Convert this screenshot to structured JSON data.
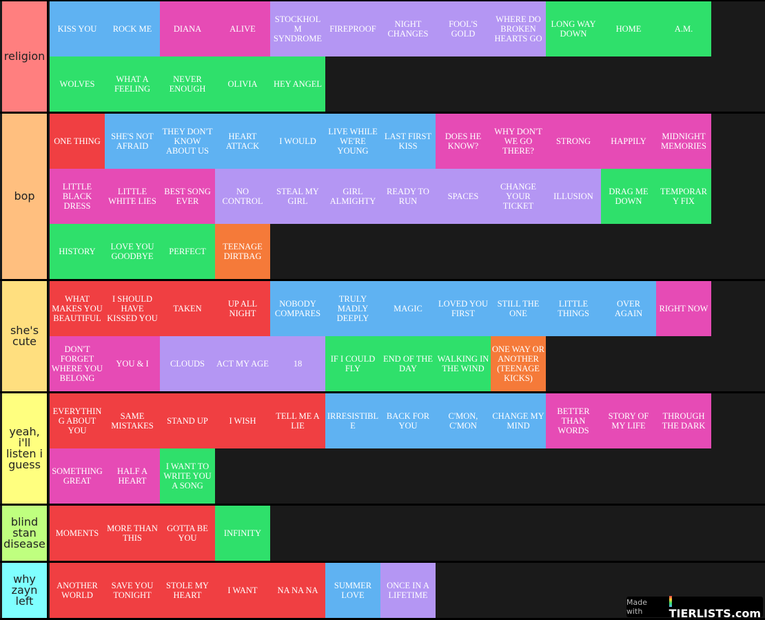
{
  "tiers": [
    {
      "label": "religion",
      "color": "#ff7f7f",
      "items": [
        {
          "text": "KISS YOU",
          "c": "blue"
        },
        {
          "text": "ROCK ME",
          "c": "blue"
        },
        {
          "text": "DIANA",
          "c": "pink"
        },
        {
          "text": "ALIVE",
          "c": "pink"
        },
        {
          "text": "STOCKHOLM SYNDROME",
          "c": "purple"
        },
        {
          "text": "FIREPROOF",
          "c": "purple"
        },
        {
          "text": "NIGHT CHANGES",
          "c": "purple"
        },
        {
          "text": "FOOL'S GOLD",
          "c": "purple"
        },
        {
          "text": "WHERE DO BROKEN HEARTS GO",
          "c": "purple"
        },
        {
          "text": "LONG WAY DOWN",
          "c": "green"
        },
        {
          "text": "HOME",
          "c": "green"
        },
        {
          "text": "A.M.",
          "c": "green"
        },
        {
          "text": "WOLVES",
          "c": "green"
        },
        {
          "text": "WHAT A FEELING",
          "c": "green"
        },
        {
          "text": "NEVER ENOUGH",
          "c": "green"
        },
        {
          "text": "OLIVIA",
          "c": "green"
        },
        {
          "text": "HEY ANGEL",
          "c": "green"
        }
      ]
    },
    {
      "label": "bop",
      "color": "#ffbf7f",
      "items": [
        {
          "text": "ONE THING",
          "c": "red"
        },
        {
          "text": "SHE'S NOT AFRAID",
          "c": "blue"
        },
        {
          "text": "THEY DON'T KNOW ABOUT US",
          "c": "blue"
        },
        {
          "text": "HEART ATTACK",
          "c": "blue"
        },
        {
          "text": "I WOULD",
          "c": "blue"
        },
        {
          "text": "LIVE WHILE WE'RE YOUNG",
          "c": "blue"
        },
        {
          "text": "LAST FIRST KISS",
          "c": "blue"
        },
        {
          "text": "DOES HE KNOW?",
          "c": "pink"
        },
        {
          "text": "WHY DON'T WE GO THERE?",
          "c": "pink"
        },
        {
          "text": "STRONG",
          "c": "pink"
        },
        {
          "text": "HAPPILY",
          "c": "pink"
        },
        {
          "text": "MIDNIGHT MEMORIES",
          "c": "pink"
        },
        {
          "text": "LITTLE BLACK DRESS",
          "c": "pink"
        },
        {
          "text": "LITTLE WHITE LIES",
          "c": "pink"
        },
        {
          "text": "BEST SONG EVER",
          "c": "pink"
        },
        {
          "text": "NO CONTROL",
          "c": "purple"
        },
        {
          "text": "STEAL MY GIRL",
          "c": "purple"
        },
        {
          "text": "GIRL ALMIGHTY",
          "c": "purple"
        },
        {
          "text": "READY TO RUN",
          "c": "purple"
        },
        {
          "text": "SPACES",
          "c": "purple"
        },
        {
          "text": "CHANGE YOUR TICKET",
          "c": "purple"
        },
        {
          "text": "ILLUSION",
          "c": "purple"
        },
        {
          "text": "DRAG ME DOWN",
          "c": "green"
        },
        {
          "text": "TEMPORARY FIX",
          "c": "green"
        },
        {
          "text": "HISTORY",
          "c": "green"
        },
        {
          "text": "LOVE YOU GOODBYE",
          "c": "green"
        },
        {
          "text": "PERFECT",
          "c": "green"
        },
        {
          "text": "TEENAGE DIRTBAG",
          "c": "orange"
        }
      ]
    },
    {
      "label": "she's cute",
      "color": "#ffdf7f",
      "items": [
        {
          "text": "WHAT MAKES YOU BEAUTIFUL",
          "c": "red"
        },
        {
          "text": "I SHOULD HAVE KISSED YOU",
          "c": "red"
        },
        {
          "text": "TAKEN",
          "c": "red"
        },
        {
          "text": "UP ALL NIGHT",
          "c": "red"
        },
        {
          "text": "NOBODY COMPARES",
          "c": "blue"
        },
        {
          "text": "TRULY MADLY DEEPLY",
          "c": "blue"
        },
        {
          "text": "MAGIC",
          "c": "blue"
        },
        {
          "text": "LOVED YOU FIRST",
          "c": "blue"
        },
        {
          "text": "STILL THE ONE",
          "c": "blue"
        },
        {
          "text": "LITTLE THINGS",
          "c": "blue"
        },
        {
          "text": "OVER AGAIN",
          "c": "blue"
        },
        {
          "text": "RIGHT NOW",
          "c": "pink"
        },
        {
          "text": "DON'T FORGET WHERE YOU BELONG",
          "c": "pink"
        },
        {
          "text": "YOU & I",
          "c": "pink"
        },
        {
          "text": "CLOUDS",
          "c": "purple"
        },
        {
          "text": "ACT MY AGE",
          "c": "purple"
        },
        {
          "text": "18",
          "c": "purple"
        },
        {
          "text": "IF I COULD FLY",
          "c": "green"
        },
        {
          "text": "END OF THE DAY",
          "c": "green"
        },
        {
          "text": "WALKING IN THE WIND",
          "c": "green"
        },
        {
          "text": "ONE WAY OR ANOTHER (TEENAGE KICKS)",
          "c": "orange"
        }
      ]
    },
    {
      "label": "yeah, i'll listen i guess",
      "color": "#ffff7f",
      "items": [
        {
          "text": "EVERYTHING ABOUT YOU",
          "c": "red"
        },
        {
          "text": "SAME MISTAKES",
          "c": "red"
        },
        {
          "text": "STAND UP",
          "c": "red"
        },
        {
          "text": "I WISH",
          "c": "red"
        },
        {
          "text": "TELL ME A LIE",
          "c": "red"
        },
        {
          "text": "IRRESISTIBLE",
          "c": "blue"
        },
        {
          "text": "BACK FOR YOU",
          "c": "blue"
        },
        {
          "text": "C'MON, C'MON",
          "c": "blue"
        },
        {
          "text": "CHANGE MY MIND",
          "c": "blue"
        },
        {
          "text": "BETTER THAN WORDS",
          "c": "pink"
        },
        {
          "text": "STORY OF MY LIFE",
          "c": "pink"
        },
        {
          "text": "THROUGH THE DARK",
          "c": "pink"
        },
        {
          "text": "SOMETHING GREAT",
          "c": "pink"
        },
        {
          "text": "HALF A HEART",
          "c": "pink"
        },
        {
          "text": "I WANT TO WRITE YOU A SONG",
          "c": "green"
        }
      ]
    },
    {
      "label": "blind stan disease",
      "color": "#bfff7f",
      "items": [
        {
          "text": "MOMENTS",
          "c": "red"
        },
        {
          "text": "MORE THAN THIS",
          "c": "red"
        },
        {
          "text": "GOTTA BE YOU",
          "c": "red"
        },
        {
          "text": "INFINITY",
          "c": "green"
        }
      ]
    },
    {
      "label": "why zayn left",
      "color": "#7fffff",
      "items": [
        {
          "text": "ANOTHER WORLD",
          "c": "red"
        },
        {
          "text": "SAVE YOU TONIGHT",
          "c": "red"
        },
        {
          "text": "STOLE MY HEART",
          "c": "red"
        },
        {
          "text": "I WANT",
          "c": "red"
        },
        {
          "text": "NA NA NA",
          "c": "red"
        },
        {
          "text": "SUMMER LOVE",
          "c": "blue"
        },
        {
          "text": "ONCE IN A LIFETIME",
          "c": "purple"
        }
      ]
    }
  ],
  "watermark": {
    "prefix": "Made with",
    "brand": "TIERLISTS.com"
  }
}
